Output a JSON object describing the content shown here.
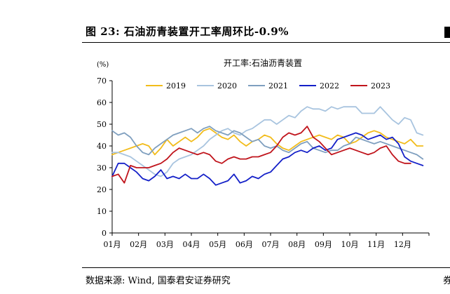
{
  "figure": {
    "title": "图 23: 石油沥青装置开工率周环比-0.9%",
    "source": "数据来源: Wind, 国泰君安证券研究",
    "source_tail": "券"
  },
  "chart_data": {
    "type": "line",
    "title": "开工率:石油沥青装置",
    "ylabel": "(%)",
    "xlabel": "",
    "ylim": [
      0,
      70
    ],
    "yticks": [
      0,
      10,
      20,
      30,
      40,
      50,
      60,
      70
    ],
    "x_tick_labels": [
      "01月",
      "02月",
      "03月",
      "04月",
      "05月",
      "06月",
      "07月",
      "08月",
      "09月",
      "10月",
      "11月",
      "12月"
    ],
    "x_unit": "week of year",
    "grid": false,
    "legend_position": "top",
    "series": [
      {
        "name": "2019",
        "color": "#F2BC1B",
        "x": [
          1,
          2,
          3,
          4,
          5,
          6,
          7,
          8,
          9,
          10,
          11,
          12,
          13,
          14,
          15,
          16,
          17,
          18,
          19,
          20,
          21,
          22,
          23,
          24,
          25,
          26,
          27,
          28,
          29,
          30,
          31,
          32,
          33,
          34,
          35,
          36,
          37,
          38,
          39,
          40,
          41,
          42,
          43,
          44,
          45,
          46,
          47,
          48,
          49,
          50,
          51,
          52
        ],
        "values": [
          36,
          37,
          38,
          39,
          40,
          41,
          40,
          36,
          39,
          43,
          40,
          42,
          44,
          42,
          44,
          47,
          48,
          46,
          44,
          43,
          45,
          42,
          40,
          42,
          43,
          45,
          44,
          41,
          39,
          38,
          40,
          42,
          43,
          44,
          45,
          44,
          43,
          45,
          44,
          41,
          42,
          44,
          46,
          47,
          46,
          44,
          43,
          42,
          41,
          43,
          40,
          40
        ]
      },
      {
        "name": "2020",
        "color": "#A8C4DF",
        "x": [
          1,
          2,
          3,
          4,
          5,
          6,
          7,
          8,
          9,
          10,
          11,
          12,
          13,
          14,
          15,
          16,
          17,
          18,
          19,
          20,
          21,
          22,
          23,
          24,
          25,
          26,
          27,
          28,
          29,
          30,
          31,
          32,
          33,
          34,
          35,
          36,
          37,
          38,
          39,
          40,
          41,
          42,
          43,
          44,
          45,
          46,
          47,
          48,
          49,
          50,
          51,
          52
        ],
        "values": [
          37,
          37,
          36,
          35,
          33,
          31,
          29,
          27,
          26,
          28,
          32,
          34,
          35,
          36,
          38,
          40,
          43,
          45,
          47,
          48,
          46,
          45,
          47,
          48,
          50,
          52,
          52,
          50,
          52,
          54,
          53,
          56,
          58,
          57,
          57,
          56,
          58,
          57,
          58,
          58,
          58,
          55,
          55,
          55,
          58,
          55,
          52,
          50,
          53,
          52,
          46,
          45
        ]
      },
      {
        "name": "2021",
        "color": "#7F9FBF",
        "x": [
          1,
          2,
          3,
          4,
          5,
          6,
          7,
          8,
          9,
          10,
          11,
          12,
          13,
          14,
          15,
          16,
          17,
          18,
          19,
          20,
          21,
          22,
          23,
          24,
          25,
          26,
          27,
          28,
          29,
          30,
          31,
          32,
          33,
          34,
          35,
          36,
          37,
          38,
          39,
          40,
          41,
          42,
          43,
          44,
          45,
          46,
          47,
          48,
          49,
          50,
          51,
          52
        ],
        "values": [
          47,
          45,
          46,
          44,
          40,
          37,
          36,
          39,
          41,
          43,
          45,
          46,
          47,
          48,
          46,
          48,
          49,
          47,
          46,
          45,
          47,
          46,
          44,
          42,
          43,
          40,
          39,
          40,
          38,
          37,
          39,
          41,
          42,
          39,
          38,
          37,
          38,
          38,
          40,
          41,
          44,
          43,
          42,
          41,
          42,
          41,
          40,
          39,
          38,
          37,
          36,
          34
        ]
      },
      {
        "name": "2022",
        "color": "#1420C8",
        "x": [
          1,
          2,
          3,
          4,
          5,
          6,
          7,
          8,
          9,
          10,
          11,
          12,
          13,
          14,
          15,
          16,
          17,
          18,
          19,
          20,
          21,
          22,
          23,
          24,
          25,
          26,
          27,
          28,
          29,
          30,
          31,
          32,
          33,
          34,
          35,
          36,
          37,
          38,
          39,
          40,
          41,
          42,
          43,
          44,
          45,
          46,
          47,
          48,
          49,
          50,
          51,
          52
        ],
        "values": [
          26,
          32,
          32,
          30,
          28,
          25,
          24,
          26,
          29,
          25,
          26,
          25,
          27,
          25,
          25,
          27,
          25,
          22,
          23,
          24,
          27,
          23,
          24,
          26,
          25,
          27,
          28,
          31,
          34,
          35,
          37,
          38,
          37,
          39,
          40,
          38,
          39,
          43,
          44,
          45,
          46,
          45,
          43,
          44,
          45,
          43,
          44,
          41,
          35,
          33,
          32,
          31
        ]
      },
      {
        "name": "2023",
        "color": "#C0141C",
        "x": [
          1,
          2,
          3,
          4,
          5,
          6,
          7,
          8,
          9,
          10,
          11,
          12,
          13,
          14,
          15,
          16,
          17,
          18,
          19,
          20,
          21,
          22,
          23,
          24,
          25,
          26,
          27,
          28,
          29,
          30,
          31,
          32,
          33,
          34,
          35,
          36,
          37,
          38,
          39,
          40,
          41,
          42,
          43,
          44,
          45,
          46,
          47,
          48,
          49,
          50
        ],
        "values": [
          26,
          27,
          23,
          31,
          30,
          30,
          30,
          31,
          32,
          34,
          37,
          39,
          38,
          37,
          36,
          37,
          36,
          33,
          32,
          34,
          35,
          34,
          34,
          35,
          35,
          36,
          37,
          40,
          44,
          46,
          45,
          46,
          49,
          44,
          42,
          39,
          36,
          37,
          38,
          39,
          38,
          37,
          36,
          37,
          39,
          40,
          36,
          33,
          32,
          32
        ]
      }
    ]
  }
}
